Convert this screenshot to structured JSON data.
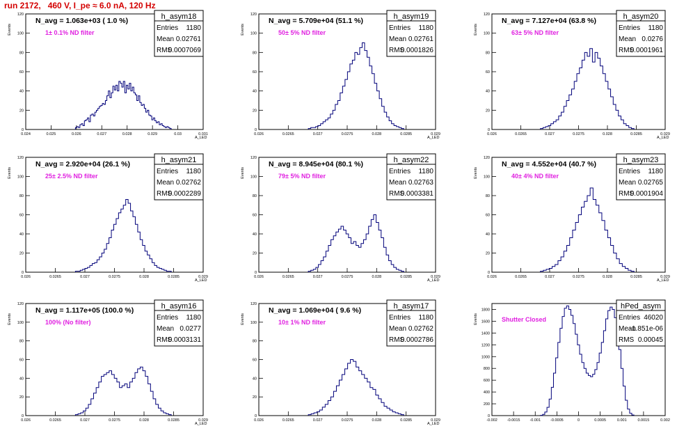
{
  "page_title": "run 2172,   460 V, I_pe ≈ 6.0 nA, 120 Hz",
  "chart_data": [
    {
      "type": "histogram",
      "name": "h_asym18",
      "nlabel": "N_avg = 1.063e+03 ( 1.0 %)",
      "filter": "1± 0.1% ND filter",
      "entries": "1180",
      "mean": "0.02761",
      "rms": "0.0007069",
      "xlim": [
        0.024,
        0.031
      ],
      "ylim": [
        0,
        120
      ],
      "xticks": [
        "0.024",
        "0.025",
        "0.026",
        "0.027",
        "0.028",
        "0.029",
        "0.03",
        "0.031"
      ],
      "yticks": [
        "0",
        "20",
        "40",
        "60",
        "80",
        "100",
        "120"
      ],
      "ylabel": "Events",
      "xlabel": "A_LED",
      "bin_values": [
        2,
        3,
        2,
        5,
        6,
        4,
        9,
        10,
        12,
        8,
        15,
        16,
        14,
        18,
        20,
        22,
        24,
        25,
        27,
        26,
        30,
        35,
        40,
        33,
        38,
        45,
        41,
        46,
        40,
        50,
        48,
        44,
        50,
        38,
        46,
        42,
        48,
        40,
        44,
        38,
        36,
        30,
        35,
        28,
        25,
        26,
        22,
        18,
        20,
        15,
        14,
        10,
        12,
        9,
        7,
        8,
        5,
        6,
        4,
        3,
        2,
        3,
        2,
        1
      ]
    },
    {
      "type": "histogram",
      "name": "h_asym19",
      "nlabel": "N_avg = 5.709e+04 (51.1 %)",
      "filter": "50± 5% ND filter",
      "entries": "1180",
      "mean": "0.02761",
      "rms": "0.0001826",
      "xlim": [
        0.026,
        0.029
      ],
      "ylim": [
        0,
        120
      ],
      "xticks": [
        "0.026",
        "0.0265",
        "0.027",
        "0.0275",
        "0.028",
        "0.0285",
        "0.029"
      ],
      "yticks": [
        "0",
        "20",
        "40",
        "60",
        "80",
        "100",
        "120"
      ],
      "ylabel": "Events",
      "xlabel": "A_LED",
      "bin_values": [
        1,
        2,
        2,
        3,
        4,
        6,
        8,
        10,
        12,
        16,
        20,
        26,
        30,
        38,
        45,
        52,
        60,
        68,
        72,
        80,
        78,
        85,
        90,
        82,
        75,
        66,
        58,
        48,
        40,
        32,
        24,
        18,
        13,
        9,
        6,
        4,
        3,
        2,
        1
      ]
    },
    {
      "type": "histogram",
      "name": "h_asym20",
      "nlabel": "N_avg = 7.127e+04 (63.8 %)",
      "filter": "63± 5% ND filter",
      "entries": "1180",
      "mean": "0.0276",
      "rms": "0.0001961",
      "xlim": [
        0.026,
        0.029
      ],
      "ylim": [
        0,
        120
      ],
      "xticks": [
        "0.026",
        "0.0265",
        "0.027",
        "0.0275",
        "0.028",
        "0.0285",
        "0.029"
      ],
      "yticks": [
        "0",
        "20",
        "40",
        "60",
        "80",
        "100",
        "120"
      ],
      "ylabel": "Events",
      "xlabel": "A_LED",
      "bin_values": [
        1,
        2,
        3,
        4,
        6,
        8,
        10,
        14,
        18,
        24,
        30,
        36,
        42,
        50,
        58,
        64,
        72,
        80,
        76,
        84,
        70,
        80,
        74,
        66,
        58,
        50,
        42,
        34,
        26,
        20,
        14,
        10,
        6,
        4,
        2,
        1
      ]
    },
    {
      "type": "histogram",
      "name": "h_asym21",
      "nlabel": "N_avg = 2.920e+04 (26.1 %)",
      "filter": "25± 2.5% ND filter",
      "entries": "1180",
      "mean": "0.02762",
      "rms": "0.0002289",
      "xlim": [
        0.026,
        0.029
      ],
      "ylim": [
        0,
        120
      ],
      "xticks": [
        "0.026",
        "0.0265",
        "0.027",
        "0.0275",
        "0.028",
        "0.0285",
        "0.029"
      ],
      "yticks": [
        "0",
        "20",
        "40",
        "60",
        "80",
        "100",
        "120"
      ],
      "ylabel": "Events",
      "xlabel": "A_LED",
      "bin_values": [
        1,
        1,
        2,
        3,
        4,
        5,
        7,
        9,
        10,
        13,
        16,
        20,
        24,
        30,
        36,
        44,
        50,
        56,
        62,
        66,
        70,
        76,
        72,
        64,
        58,
        50,
        42,
        34,
        28,
        22,
        18,
        14,
        10,
        7,
        5,
        4,
        3,
        2,
        1,
        1
      ]
    },
    {
      "type": "histogram",
      "name": "h_asym22",
      "nlabel": "N_avg = 8.945e+04 (80.1 %)",
      "filter": "79± 5% ND filter",
      "entries": "1180",
      "mean": "0.02763",
      "rms": "0.0003381",
      "xlim": [
        0.026,
        0.029
      ],
      "ylim": [
        0,
        120
      ],
      "xticks": [
        "0.026",
        "0.0265",
        "0.027",
        "0.0275",
        "0.028",
        "0.0285",
        "0.029"
      ],
      "yticks": [
        "0",
        "20",
        "40",
        "60",
        "80",
        "100",
        "120"
      ],
      "ylabel": "Events",
      "xlabel": "A_LED",
      "bin_values": [
        1,
        2,
        3,
        5,
        8,
        12,
        16,
        22,
        28,
        34,
        38,
        42,
        45,
        48,
        44,
        40,
        36,
        30,
        32,
        28,
        26,
        30,
        34,
        40,
        48,
        55,
        60,
        52,
        44,
        36,
        26,
        18,
        12,
        8,
        5,
        3,
        2,
        1
      ]
    },
    {
      "type": "histogram",
      "name": "h_asym23",
      "nlabel": "N_avg = 4.552e+04 (40.7 %)",
      "filter": "40± 4% ND filter",
      "entries": "1180",
      "mean": "0.02765",
      "rms": "0.0001904",
      "xlim": [
        0.026,
        0.029
      ],
      "ylim": [
        0,
        120
      ],
      "xticks": [
        "0.026",
        "0.0265",
        "0.027",
        "0.0275",
        "0.028",
        "0.0285",
        "0.029"
      ],
      "yticks": [
        "0",
        "20",
        "40",
        "60",
        "80",
        "100",
        "120"
      ],
      "ylabel": "Events",
      "xlabel": "A_LED",
      "bin_values": [
        1,
        2,
        3,
        4,
        6,
        8,
        12,
        16,
        22,
        28,
        36,
        44,
        52,
        60,
        68,
        74,
        80,
        88,
        76,
        70,
        62,
        54,
        44,
        36,
        28,
        20,
        14,
        9,
        6,
        4,
        2,
        1
      ]
    },
    {
      "type": "histogram",
      "name": "h_asym16",
      "nlabel": "N_avg = 1.117e+05 (100.0 %)",
      "filter": "100% (No filter)",
      "entries": "1180",
      "mean": "0.0277",
      "rms": "0.0003131",
      "xlim": [
        0.026,
        0.029
      ],
      "ylim": [
        0,
        120
      ],
      "xticks": [
        "0.026",
        "0.0265",
        "0.027",
        "0.0275",
        "0.028",
        "0.0285",
        "0.029"
      ],
      "yticks": [
        "0",
        "20",
        "40",
        "60",
        "80",
        "100",
        "120"
      ],
      "ylabel": "Events",
      "xlabel": "A_LED",
      "bin_values": [
        1,
        2,
        3,
        5,
        8,
        12,
        18,
        24,
        30,
        36,
        42,
        44,
        46,
        48,
        44,
        40,
        36,
        30,
        32,
        34,
        30,
        36,
        40,
        46,
        50,
        52,
        48,
        42,
        34,
        26,
        18,
        12,
        8,
        5,
        3,
        2,
        1
      ]
    },
    {
      "type": "histogram",
      "name": "h_asym17",
      "nlabel": "N_avg = 1.069e+04 ( 9.6 %)",
      "filter": "10± 1% ND filter",
      "entries": "1180",
      "mean": "0.02762",
      "rms": "0.0002786",
      "xlim": [
        0.026,
        0.029
      ],
      "ylim": [
        0,
        120
      ],
      "xticks": [
        "0.026",
        "0.0265",
        "0.027",
        "0.0275",
        "0.028",
        "0.0285",
        "0.029"
      ],
      "yticks": [
        "0",
        "20",
        "40",
        "60",
        "80",
        "100",
        "120"
      ],
      "ylabel": "Events",
      "xlabel": "A_LED",
      "bin_values": [
        1,
        2,
        3,
        4,
        6,
        9,
        12,
        16,
        20,
        26,
        32,
        38,
        44,
        50,
        56,
        60,
        58,
        52,
        48,
        44,
        40,
        36,
        30,
        28,
        22,
        18,
        14,
        10,
        8,
        6,
        4,
        3,
        2,
        1
      ]
    },
    {
      "type": "histogram",
      "name": "hPed_asym",
      "nlabel": "",
      "filter": "Shutter Closed",
      "entries": "46020",
      "mean": "-1.851e-06",
      "rms": "0.00045",
      "xlim": [
        -0.002,
        0.002
      ],
      "ylim": [
        0,
        1900
      ],
      "xticks": [
        "-0.002",
        "-0.0015",
        "-0.001",
        "-0.0005",
        "0",
        "0.0005",
        "0.001",
        "0.0015",
        "0.002"
      ],
      "yticks": [
        "0",
        "200",
        "400",
        "600",
        "800",
        "1000",
        "1200",
        "1400",
        "1600",
        "1800"
      ],
      "ylabel": "Events",
      "xlabel": "",
      "bin_values": [
        5,
        20,
        60,
        140,
        280,
        480,
        720,
        980,
        1240,
        1480,
        1680,
        1820,
        1860,
        1800,
        1700,
        1560,
        1380,
        1200,
        1040,
        900,
        800,
        720,
        680,
        660,
        700,
        780,
        900,
        1060,
        1240,
        1440,
        1640,
        1780,
        1840,
        1800,
        1660,
        1420,
        1120,
        800,
        500,
        260,
        110,
        40,
        10
      ]
    }
  ]
}
